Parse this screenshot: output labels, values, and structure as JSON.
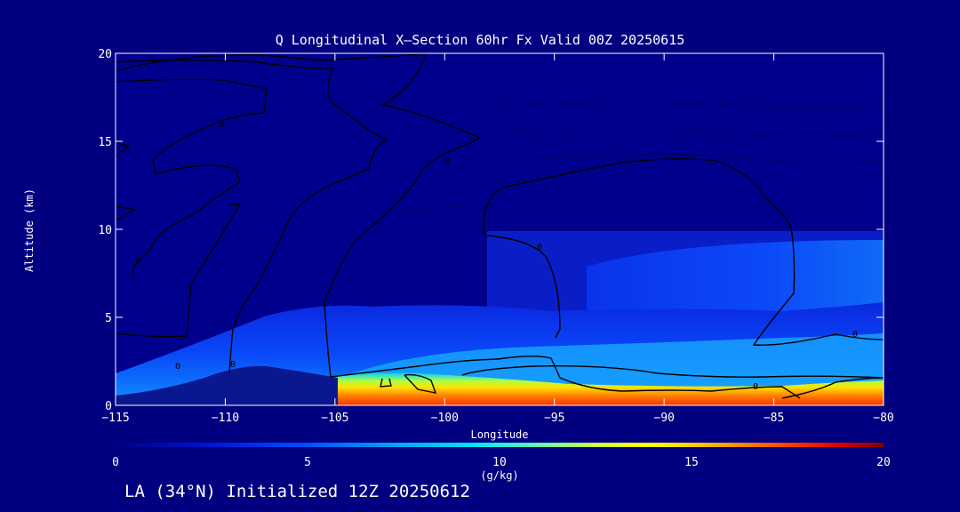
{
  "chart_data": {
    "type": "heatmap",
    "subtype": "filled-contour cross-section",
    "title": "Q Longitudinal X–Section 60hr  Fx Valid 00Z 20250615",
    "xlabel": "Longitude",
    "ylabel": "Altitude (km)",
    "xlim": [
      -115,
      -80
    ],
    "ylim": [
      0,
      20
    ],
    "x_ticks": [
      -115,
      -110,
      -105,
      -100,
      -95,
      -90,
      -85,
      -80
    ],
    "y_ticks": [
      0,
      5,
      10,
      15,
      20
    ],
    "colorbar": {
      "range": [
        0,
        20
      ],
      "ticks": [
        0,
        5,
        10,
        15,
        20
      ],
      "unit": "(g/kg)",
      "colormap": "rainbow"
    },
    "grid": false,
    "terrain_top_km": [
      {
        "lon": -115,
        "alt": 0.3
      },
      {
        "lon": -113,
        "alt": 0.8
      },
      {
        "lon": -110,
        "alt": 1.6
      },
      {
        "lon": -108,
        "alt": 2.1
      },
      {
        "lon": -106,
        "alt": 1.6
      },
      {
        "lon": -104.5,
        "alt": 1.1
      }
    ],
    "moist_layer": [
      {
        "lon": -105,
        "top_km": 1.6,
        "q_max": 10
      },
      {
        "lon": -100,
        "top_km": 1.8,
        "q_max": 15
      },
      {
        "lon": -95,
        "top_km": 1.6,
        "q_max": 16
      },
      {
        "lon": -90,
        "top_km": 1.4,
        "q_max": 17
      },
      {
        "lon": -85,
        "top_km": 1.4,
        "q_max": 17
      },
      {
        "lon": -80,
        "top_km": 1.2,
        "q_max": 18
      }
    ],
    "contour_labels": [
      "0",
      "0",
      "0",
      "0",
      "0",
      "0",
      "0",
      "0"
    ]
  },
  "footer": "LA (34°N) Initialized 12Z 20250612",
  "colors": {
    "background": "#000080",
    "text": "#ffffff"
  }
}
